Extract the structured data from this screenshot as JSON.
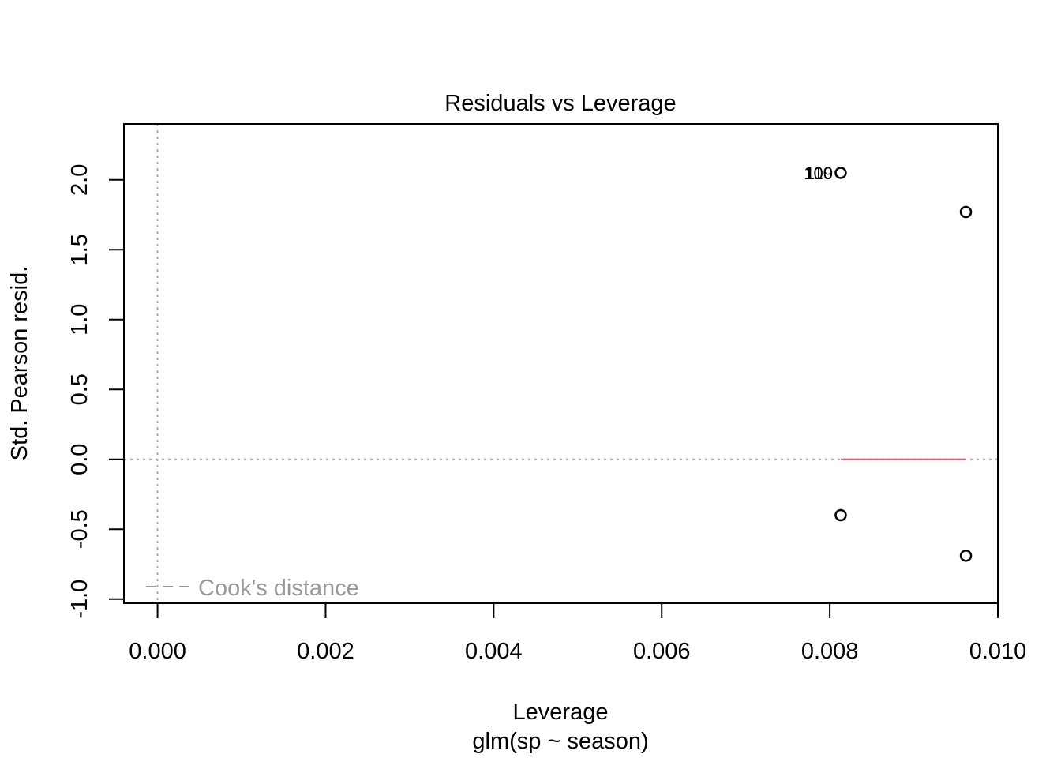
{
  "chart_data": {
    "type": "scatter",
    "title": "Residuals vs Leverage",
    "xlabel": "Leverage",
    "sublabel": "glm(sp ~ season)",
    "ylabel": "Std. Pearson resid.",
    "xlim": [
      -0.0004,
      0.01
    ],
    "ylim": [
      -1.03,
      2.4
    ],
    "x_ticks": [
      {
        "value": 0.0,
        "label": "0.000"
      },
      {
        "value": 0.002,
        "label": "0.002"
      },
      {
        "value": 0.004,
        "label": "0.004"
      },
      {
        "value": 0.006,
        "label": "0.006"
      },
      {
        "value": 0.008,
        "label": "0.008"
      },
      {
        "value": 0.01,
        "label": "0.010"
      }
    ],
    "y_ticks": [
      {
        "value": -1.0,
        "label": "-1.0"
      },
      {
        "value": -0.5,
        "label": "-0.5"
      },
      {
        "value": 0.0,
        "label": "0.0"
      },
      {
        "value": 0.5,
        "label": "0.5"
      },
      {
        "value": 1.0,
        "label": "1.0"
      },
      {
        "value": 1.5,
        "label": "1.5"
      },
      {
        "value": 2.0,
        "label": "2.0"
      }
    ],
    "points": [
      {
        "x": 0.00813,
        "y": 2.05
      },
      {
        "x": 0.00962,
        "y": 1.77
      },
      {
        "x": 0.00813,
        "y": -0.4
      },
      {
        "x": 0.00962,
        "y": -0.69
      }
    ],
    "point_labels": [
      {
        "text": "109",
        "x": 0.00813,
        "y": 2.05
      },
      {
        "text": "110",
        "x": 0.00813,
        "y": 2.05
      }
    ],
    "smooth_line": {
      "x": [
        0.00813,
        0.00962
      ],
      "y": [
        0.0,
        0.0
      ],
      "color": "#DF536B"
    },
    "reference_lines": {
      "h": 0.0,
      "v": 0.0,
      "color": "#AAAAAA"
    },
    "legend": {
      "label": "Cook's distance",
      "position": "bottom-left",
      "color": "#999999"
    }
  }
}
